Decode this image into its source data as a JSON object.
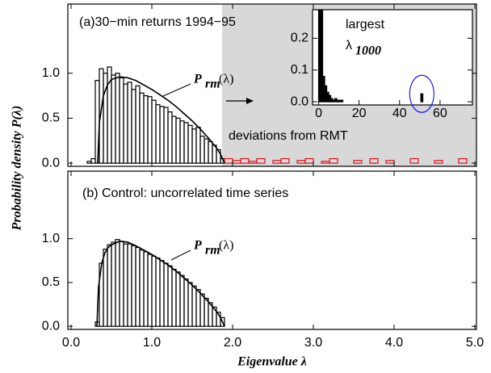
{
  "chart_data": [
    {
      "type": "histogram",
      "label": "(a)30−min returns 1994−95",
      "ylabel": "Probability density P(λ)",
      "xlim": [
        -0.04,
        5.02
      ],
      "ylim": [
        -0.035,
        1.77
      ],
      "yticks": [
        {
          "value": 0,
          "label": "0.0"
        },
        {
          "value": 0.5,
          "label": "0.5"
        },
        {
          "value": 1,
          "label": "1.0"
        }
      ],
      "shade_xlim": [
        1.87,
        5.02
      ],
      "shade_color": "#d8d8d8",
      "annotation": "deviations from RMT",
      "curve_label": {
        "symbol": "P",
        "subscript": "rm",
        "argument": "(λ)"
      },
      "series": [
        {
          "color": "#000000",
          "bins": [
            0.2,
            0.25,
            0.3,
            0.35,
            0.4,
            0.45,
            0.5,
            0.55,
            0.6,
            0.65,
            0.7,
            0.75,
            0.8,
            0.85,
            0.9,
            0.95,
            1.0,
            1.05,
            1.1,
            1.15,
            1.2,
            1.25,
            1.3,
            1.35,
            1.4,
            1.45,
            1.5,
            1.55,
            1.6,
            1.65,
            1.7,
            1.75,
            1.8,
            1.85,
            1.9
          ],
          "values": [
            0.02,
            0.05,
            0.92,
            1.05,
            1.0,
            1.07,
            0.98,
            1.0,
            0.95,
            0.88,
            0.9,
            0.82,
            0.86,
            0.78,
            0.75,
            0.74,
            0.7,
            0.65,
            0.63,
            0.62,
            0.57,
            0.52,
            0.5,
            0.47,
            0.45,
            0.42,
            0.38,
            0.4,
            0.3,
            0.27,
            0.24,
            0.2,
            0.15,
            0.05
          ]
        },
        {
          "color": "#e0101a",
          "bins": [
            1.9,
            2.0,
            2.1,
            2.2,
            2.3,
            2.4,
            2.5,
            2.6,
            2.7,
            2.8,
            2.9,
            3.0,
            3.1,
            3.2,
            3.3,
            3.4,
            3.5,
            3.6,
            3.7,
            3.8,
            3.9,
            4.0,
            4.1,
            4.2,
            4.3,
            4.4,
            4.5,
            4.6,
            4.7,
            4.8,
            4.9,
            5.0
          ],
          "values": [
            0.05,
            0.03,
            0.05,
            0.02,
            0.05,
            0,
            0.03,
            0.05,
            0,
            0.03,
            0.05,
            0,
            0.02,
            0.05,
            0,
            0,
            0.03,
            0,
            0.05,
            0,
            0.03,
            0,
            0,
            0.05,
            0,
            0,
            0.03,
            0,
            0,
            0.05,
            0
          ]
        }
      ],
      "curve": {
        "x": [
          0.33,
          0.35,
          0.4,
          0.45,
          0.5,
          0.6,
          0.7,
          0.8,
          0.9,
          1.0,
          1.1,
          1.2,
          1.3,
          1.4,
          1.5,
          1.6,
          1.7,
          1.8,
          1.85,
          1.9
        ],
        "values": [
          0,
          0.45,
          0.75,
          0.87,
          0.93,
          0.96,
          0.95,
          0.92,
          0.87,
          0.82,
          0.76,
          0.7,
          0.63,
          0.55,
          0.47,
          0.38,
          0.28,
          0.17,
          0.1,
          0
        ]
      }
    },
    {
      "type": "histogram",
      "label": "(b) Control: uncorrelated time series",
      "xlabel": "Eigenvalue λ",
      "xlim": [
        -0.04,
        5.02
      ],
      "ylim": [
        -0.035,
        1.77
      ],
      "xticks": [
        {
          "value": 0,
          "label": "0.0"
        },
        {
          "value": 1,
          "label": "1.0"
        },
        {
          "value": 2,
          "label": "2.0"
        },
        {
          "value": 3,
          "label": "3.0"
        },
        {
          "value": 4,
          "label": "4.0"
        },
        {
          "value": 5,
          "label": "5.0"
        }
      ],
      "yticks": [
        {
          "value": 0,
          "label": "0.0"
        },
        {
          "value": 0.5,
          "label": "0.5"
        },
        {
          "value": 1,
          "label": "1.0"
        }
      ],
      "curve_label": {
        "symbol": "P",
        "subscript": "rm",
        "argument": "(λ)"
      },
      "series": [
        {
          "color": "#000000",
          "bins": [
            0.3,
            0.35,
            0.4,
            0.45,
            0.5,
            0.55,
            0.6,
            0.65,
            0.7,
            0.75,
            0.8,
            0.85,
            0.9,
            0.95,
            1.0,
            1.05,
            1.1,
            1.15,
            1.2,
            1.25,
            1.3,
            1.35,
            1.4,
            1.45,
            1.5,
            1.55,
            1.6,
            1.65,
            1.7,
            1.75,
            1.8,
            1.85,
            1.9
          ],
          "values": [
            0.05,
            0.72,
            0.88,
            0.93,
            0.96,
            0.99,
            0.97,
            0.94,
            0.94,
            0.92,
            0.9,
            0.87,
            0.85,
            0.82,
            0.8,
            0.78,
            0.75,
            0.72,
            0.69,
            0.65,
            0.62,
            0.58,
            0.54,
            0.5,
            0.46,
            0.42,
            0.37,
            0.32,
            0.27,
            0.22,
            0.16,
            0.1
          ]
        }
      ],
      "curve": {
        "x": [
          0.32,
          0.34,
          0.38,
          0.42,
          0.46,
          0.5,
          0.6,
          0.7,
          0.8,
          0.9,
          1.0,
          1.1,
          1.2,
          1.3,
          1.4,
          1.5,
          1.6,
          1.7,
          1.8,
          1.85,
          1.9
        ],
        "values": [
          0,
          0.45,
          0.72,
          0.84,
          0.9,
          0.93,
          0.97,
          0.96,
          0.92,
          0.87,
          0.82,
          0.76,
          0.7,
          0.63,
          0.55,
          0.47,
          0.38,
          0.28,
          0.17,
          0.1,
          0
        ]
      }
    },
    {
      "type": "histogram",
      "title": "largest",
      "symbol": "λ",
      "subscript": "1000",
      "xlim": [
        -3,
        76
      ],
      "ylim": [
        -0.01,
        0.29
      ],
      "xticks": [
        0,
        20,
        40,
        60
      ],
      "yticks": [
        {
          "value": 0,
          "label": "0.0"
        },
        {
          "value": 0.1,
          "label": "0.1"
        },
        {
          "value": 0.2,
          "label": "0.2"
        }
      ],
      "highlight_color": "#1a1aff",
      "series": [
        {
          "color": "#000000",
          "bins": [
            0,
            1,
            2,
            3,
            4,
            5,
            6,
            7,
            8,
            9,
            10,
            11,
            12
          ],
          "values": [
            0.3,
            0.3,
            0.08,
            0.05,
            0.03,
            0.02,
            0.01,
            0.005,
            0.01,
            0.005,
            0.005,
            0.005
          ]
        },
        {
          "color": "#000000",
          "bins": [
            50.5,
            51.5
          ],
          "values": [
            0.025
          ]
        }
      ]
    }
  ]
}
